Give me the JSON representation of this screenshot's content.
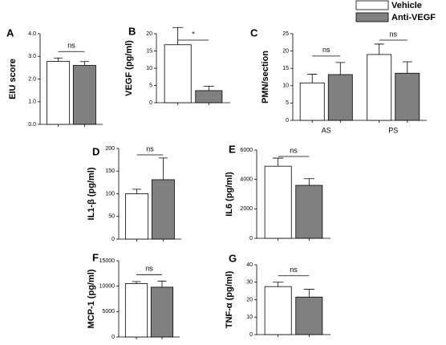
{
  "chart_data": [
    {
      "type": "bar",
      "panel": "A",
      "ylabel": "EIU score",
      "categories": [
        null
      ],
      "series": [
        {
          "name": "Vehicle",
          "color": "#ffffff",
          "values": [
            2.78
          ],
          "errors": [
            0.15
          ]
        },
        {
          "name": "Anti-VEGF",
          "color": "#808080",
          "values": [
            2.6
          ],
          "errors": [
            0.17
          ]
        }
      ],
      "ylim": [
        0,
        4
      ],
      "yticks": [
        {
          "value": 0,
          "label": "0.0"
        },
        {
          "value": 1,
          "label": "1.0"
        },
        {
          "value": 2,
          "label": "2.0"
        },
        {
          "value": 3,
          "label": "3.0"
        },
        {
          "value": 4,
          "label": "4.0"
        }
      ],
      "annotations": [
        "ns"
      ]
    },
    {
      "type": "bar",
      "panel": "B",
      "ylabel": "VEGF (pg/ml)",
      "categories": [
        null
      ],
      "series": [
        {
          "color": "#ffffff",
          "values": [
            16.8
          ],
          "errors": [
            5
          ]
        },
        {
          "color": "#808080",
          "values": [
            3.5
          ],
          "errors": [
            1.3
          ]
        }
      ],
      "ylim": [
        0,
        20
      ],
      "yticks": [
        0,
        5,
        10,
        15,
        20
      ],
      "annotations": [
        "*"
      ]
    },
    {
      "type": "bar",
      "panel": "C",
      "ylabel": "PMN/section",
      "categories": [
        "AS",
        "PS"
      ],
      "series": [
        {
          "color": "#ffffff",
          "values": [
            10.8,
            19
          ],
          "errors": [
            2.5,
            3
          ]
        },
        {
          "color": "#808080",
          "values": [
            13.2,
            13.6
          ],
          "errors": [
            3.5,
            3.3
          ]
        }
      ],
      "ylim": [
        0,
        25
      ],
      "yticks": [
        0,
        5,
        10,
        15,
        20,
        25
      ],
      "annotations": [
        "ns",
        "ns"
      ]
    },
    {
      "type": "bar",
      "panel": "D",
      "ylabel": "IL1-β (pg/ml)",
      "categories": [
        null
      ],
      "series": [
        {
          "color": "#ffffff",
          "values": [
            100
          ],
          "errors": [
            10
          ]
        },
        {
          "color": "#808080",
          "values": [
            131
          ],
          "errors": [
            48
          ]
        }
      ],
      "ylim": [
        0,
        200
      ],
      "yticks": [
        0,
        50,
        100,
        150,
        200
      ],
      "annotations": [
        "ns"
      ]
    },
    {
      "type": "bar",
      "panel": "E",
      "ylabel": "IL6 (pg/ml)",
      "categories": [
        null
      ],
      "series": [
        {
          "color": "#ffffff",
          "values": [
            4900
          ],
          "errors": [
            550
          ]
        },
        {
          "color": "#808080",
          "values": [
            3600
          ],
          "errors": [
            450
          ]
        }
      ],
      "ylim": [
        0,
        6000
      ],
      "yticks": [
        0,
        2000,
        4000,
        6000
      ],
      "annotations": [
        "ns"
      ]
    },
    {
      "type": "bar",
      "panel": "F",
      "ylabel": "MCP-1 (pg/ml)",
      "categories": [
        null
      ],
      "series": [
        {
          "color": "#ffffff",
          "values": [
            10500
          ],
          "errors": [
            400
          ]
        },
        {
          "color": "#808080",
          "values": [
            9800
          ],
          "errors": [
            1200
          ]
        }
      ],
      "ylim": [
        0,
        15000
      ],
      "yticks": [
        0,
        5000,
        10000,
        15000
      ],
      "annotations": [
        "ns"
      ]
    },
    {
      "type": "bar",
      "panel": "G",
      "ylabel": "TNF-α (pg/ml)",
      "categories": [
        null
      ],
      "series": [
        {
          "color": "#ffffff",
          "values": [
            27.5
          ],
          "errors": [
            2.5
          ]
        },
        {
          "color": "#808080",
          "values": [
            21.5
          ],
          "errors": [
            4.5
          ]
        }
      ],
      "ylim": [
        0,
        40
      ],
      "yticks": [
        0,
        10,
        20,
        30,
        40
      ],
      "annotations": [
        "ns"
      ]
    }
  ]
}
